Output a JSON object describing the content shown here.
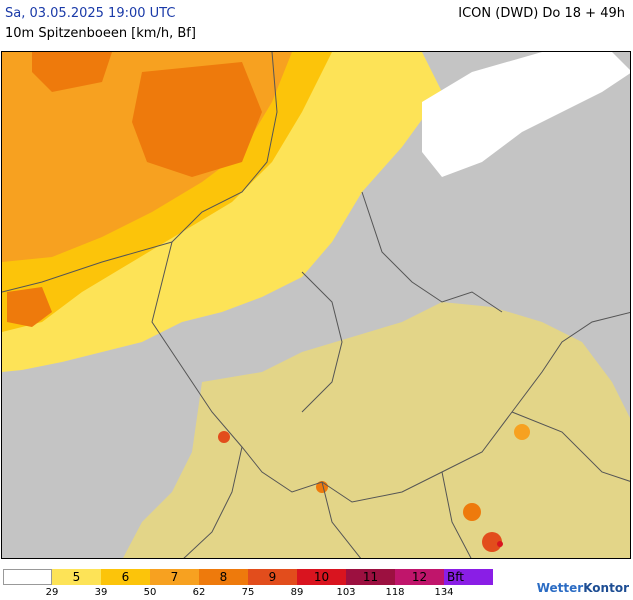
{
  "header": {
    "date": "Sa, 03.05.2025 19:00 UTC",
    "model": "ICON (DWD) Do 18 + 49h",
    "parameter": "10m Spitzenboeen [km/h, Bf]"
  },
  "legend": {
    "classes": [
      {
        "label": "",
        "color": "#ffffff"
      },
      {
        "label": "5",
        "color": "#fde357"
      },
      {
        "label": "6",
        "color": "#fcc40a"
      },
      {
        "label": "7",
        "color": "#f7a120"
      },
      {
        "label": "8",
        "color": "#ee7a0c"
      },
      {
        "label": "9",
        "color": "#e24d1c"
      },
      {
        "label": "10",
        "color": "#d9141f"
      },
      {
        "label": "11",
        "color": "#9c1040"
      },
      {
        "label": "12",
        "color": "#c0156b"
      },
      {
        "label": "Bft",
        "color": "#8a1ee6"
      }
    ],
    "ticks": [
      "29",
      "39",
      "50",
      "62",
      "75",
      "89",
      "103",
      "118",
      "134"
    ]
  },
  "logo": {
    "part1": "Wetter",
    "part2": "Kontor"
  }
}
